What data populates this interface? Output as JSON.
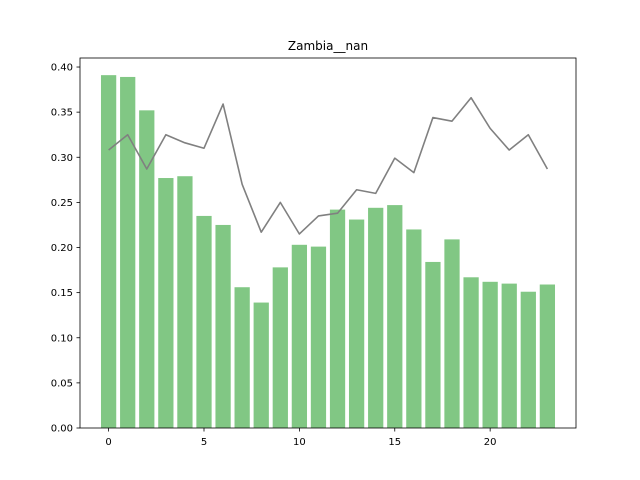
{
  "chart_data": {
    "type": "bar",
    "title": "Zambia__nan",
    "xlabel": "",
    "ylabel": "",
    "x": [
      0,
      1,
      2,
      3,
      4,
      5,
      6,
      7,
      8,
      9,
      10,
      11,
      12,
      13,
      14,
      15,
      16,
      17,
      18,
      19,
      20,
      21,
      22,
      23
    ],
    "bar_values": [
      0.391,
      0.389,
      0.352,
      0.277,
      0.279,
      0.235,
      0.225,
      0.156,
      0.139,
      0.178,
      0.203,
      0.201,
      0.242,
      0.231,
      0.244,
      0.247,
      0.22,
      0.184,
      0.209,
      0.167,
      0.162,
      0.16,
      0.151,
      0.159
    ],
    "line_values": [
      0.308,
      0.325,
      0.287,
      0.325,
      0.316,
      0.31,
      0.359,
      0.27,
      0.217,
      0.25,
      0.215,
      0.235,
      0.238,
      0.264,
      0.26,
      0.299,
      0.283,
      0.344,
      0.34,
      0.366,
      0.332,
      0.308,
      0.325,
      0.287
    ],
    "xlim": [
      -1.5,
      24.5
    ],
    "ylim": [
      0,
      0.41
    ],
    "xticks": [
      0,
      5,
      10,
      15,
      20
    ],
    "xtick_labels": [
      "0",
      "5",
      "10",
      "15",
      "20"
    ],
    "yticks": [
      0,
      0.05,
      0.1,
      0.15,
      0.2,
      0.25,
      0.3,
      0.35,
      0.4
    ],
    "ytick_labels": [
      "0.00",
      "0.05",
      "0.10",
      "0.15",
      "0.20",
      "0.25",
      "0.30",
      "0.35",
      "0.40"
    ],
    "grid": false,
    "colors": {
      "bar": "#4caf50",
      "line": "#808080",
      "axes": "#000000"
    }
  }
}
